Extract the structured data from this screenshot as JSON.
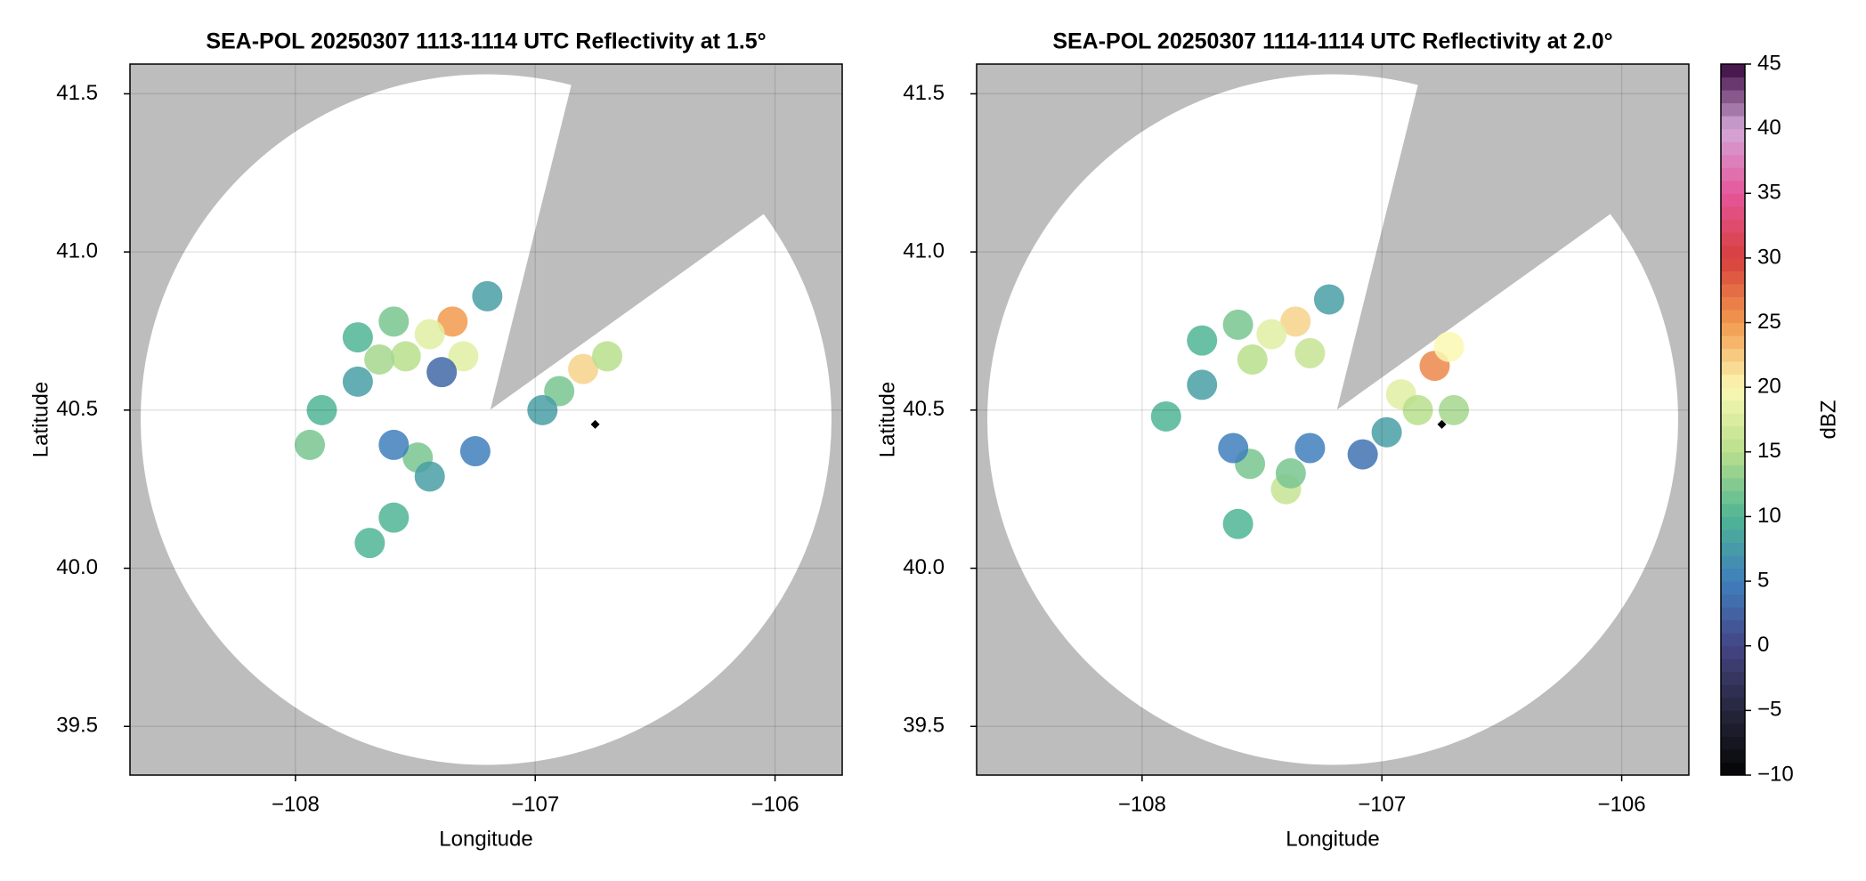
{
  "chart_data": [
    {
      "type": "scatter",
      "title": "SEA-POL 20250307 1113-1114 UTC Reflectivity at 1.5°",
      "x_label": "Longitude",
      "y_label": "Latitude",
      "xlim": [
        -108.69,
        -105.72
      ],
      "ylim": [
        39.346,
        41.594
      ],
      "xticks": [
        {
          "value": -108,
          "label": "−108"
        },
        {
          "value": -107,
          "label": "−107"
        },
        {
          "value": -106,
          "label": "−106"
        }
      ],
      "yticks": [
        39.5,
        {
          "value": 40,
          "label": "40.0"
        },
        40.5,
        {
          "value": 41,
          "label": "41.0"
        },
        41.5
      ],
      "grid": true,
      "x": [
        -107.345,
        -107.44,
        -107.59,
        -107.74,
        -107.54,
        -107.3,
        -107.2,
        -107.74,
        -107.89,
        -107.49,
        -107.44,
        -107.59,
        -106.9,
        -106.8,
        -106.7,
        -106.97,
        -107.25,
        -107.59,
        -107.69,
        -107.94,
        -107.39,
        -107.65
      ],
      "y": [
        40.78,
        40.74,
        40.78,
        40.73,
        40.67,
        40.67,
        40.86,
        40.59,
        40.5,
        40.35,
        40.29,
        40.39,
        40.56,
        40.63,
        40.67,
        40.5,
        40.37,
        40.16,
        40.08,
        40.39,
        40.62,
        40.66
      ],
      "values": [
        25,
        18,
        12,
        10,
        15,
        18,
        8,
        8,
        10,
        12,
        8,
        5,
        12,
        22,
        15,
        8,
        5,
        10,
        10,
        12,
        3,
        14
      ],
      "marker": {
        "x": -106.75,
        "y": 40.455
      }
    },
    {
      "type": "scatter",
      "title": "SEA-POL 20250307 1114-1114 UTC Reflectivity at 2.0°",
      "x_label": "Longitude",
      "y_label": "Latitude",
      "xlim": [
        -108.69,
        -105.72
      ],
      "ylim": [
        39.346,
        41.594
      ],
      "xticks": [
        {
          "value": -108,
          "label": "−108"
        },
        {
          "value": -107,
          "label": "−107"
        },
        {
          "value": -106,
          "label": "−106"
        }
      ],
      "yticks": [
        39.5,
        {
          "value": 40,
          "label": "40.0"
        },
        40.5,
        {
          "value": 41,
          "label": "41.0"
        },
        41.5
      ],
      "grid": true,
      "x": [
        -107.36,
        -107.46,
        -107.6,
        -107.75,
        -107.54,
        -107.3,
        -107.22,
        -107.75,
        -107.9,
        -107.55,
        -107.4,
        -107.62,
        -106.92,
        -106.78,
        -106.72,
        -106.85,
        -106.7,
        -107.3,
        -107.38,
        -107.08,
        -107.6,
        -106.98
      ],
      "y": [
        40.78,
        40.74,
        40.77,
        40.72,
        40.66,
        40.68,
        40.85,
        40.58,
        40.48,
        40.33,
        40.25,
        40.38,
        40.55,
        40.64,
        40.7,
        40.5,
        40.5,
        40.38,
        40.3,
        40.36,
        40.14,
        40.43
      ],
      "values": [
        22,
        18,
        12,
        10,
        15,
        16,
        8,
        8,
        10,
        12,
        16,
        5,
        18,
        26,
        20,
        15,
        14,
        5,
        12,
        4,
        10,
        8
      ],
      "marker": {
        "x": -106.75,
        "y": 40.455
      }
    }
  ],
  "colorbar": {
    "label": "dBZ",
    "lim": [
      -10,
      45
    ],
    "ticks": [
      {
        "value": -10,
        "label": "−10"
      },
      {
        "value": -5,
        "label": "−5"
      },
      0,
      5,
      10,
      15,
      20,
      25,
      30,
      35,
      40,
      45
    ],
    "colors": [
      "#050505",
      "#26263c",
      "#454585",
      "#3f7fbc",
      "#4fb594",
      "#b9df8c",
      "#fbf8b3",
      "#f29a4e",
      "#d6403d",
      "#e6569c",
      "#d3a8d8",
      "#3a0840"
    ]
  }
}
